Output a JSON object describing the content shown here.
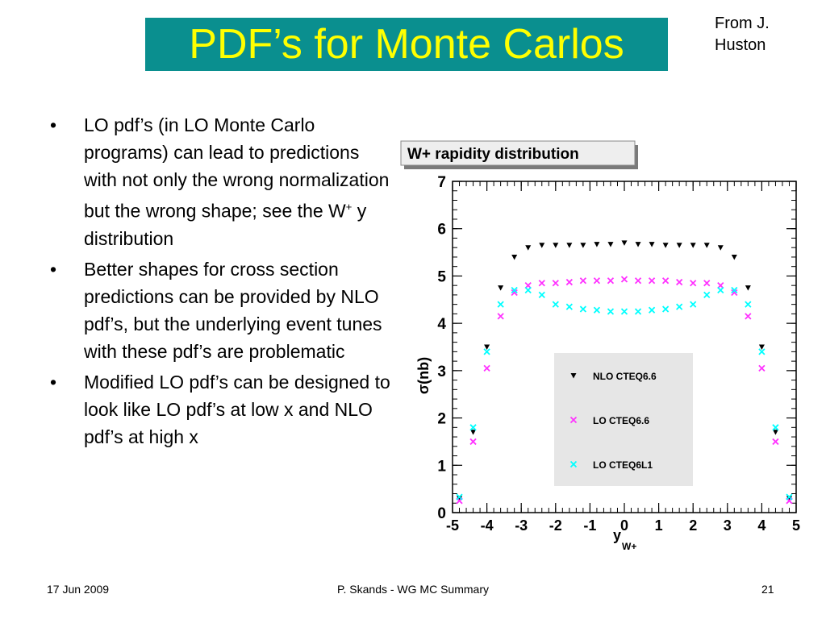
{
  "slide": {
    "title": "PDF’s for Monte Carlos",
    "credit_line1": "From J.",
    "credit_line2": "Huston",
    "bullets": [
      {
        "text_before": "LO pdf’s (in LO Monte Carlo programs) can lead to predictions with not only the wrong normalization but the wrong shape; see the W",
        "sup": "+",
        "text_after": " y distribution"
      },
      {
        "text_before": "Better shapes for cross section predictions can be provided by NLO pdf’s, but the underlying event tunes with these pdf’s are problematic",
        "sup": "",
        "text_after": ""
      },
      {
        "text_before": "Modified LO pdf’s can be designed to look like LO pdf’s at low x and NLO pdf’s at high x",
        "sup": "",
        "text_after": ""
      }
    ],
    "bullet_glyph": "•",
    "footer": {
      "date": "17 Jun 2009",
      "center": "P. Skands - WG MC Summary",
      "page": "21"
    }
  },
  "colors": {
    "title_bg": "#0a8f8f",
    "title_text": "#ffff00"
  },
  "chart_data": {
    "type": "scatter",
    "title": "W+ rapidity distribution",
    "xlabel": "y",
    "xlabel_sub": "W+",
    "ylabel": "σ(nb)",
    "xlim": [
      -5,
      5
    ],
    "ylim": [
      0,
      7
    ],
    "x_ticks": [
      -5,
      -4,
      -3,
      -2,
      -1,
      0,
      1,
      2,
      3,
      4,
      5
    ],
    "y_ticks": [
      0,
      1,
      2,
      3,
      4,
      5,
      6,
      7
    ],
    "legend_position": "right-bottom",
    "x": [
      -4.8,
      -4.4,
      -4.0,
      -3.6,
      -3.2,
      -2.8,
      -2.4,
      -2.0,
      -1.6,
      -1.2,
      -0.8,
      -0.4,
      0.0,
      0.4,
      0.8,
      1.2,
      1.6,
      2.0,
      2.4,
      2.8,
      3.2,
      3.6,
      4.0,
      4.4,
      4.8
    ],
    "series": [
      {
        "name": "NLO CTEQ6.6",
        "marker": "triangle-down",
        "color": "#000000",
        "values": [
          0.3,
          1.7,
          3.5,
          4.75,
          5.4,
          5.6,
          5.65,
          5.65,
          5.65,
          5.65,
          5.67,
          5.67,
          5.7,
          5.67,
          5.67,
          5.65,
          5.65,
          5.65,
          5.65,
          5.6,
          5.4,
          4.75,
          3.5,
          1.7,
          0.3
        ]
      },
      {
        "name": "LO CTEQ6.6",
        "marker": "x",
        "color": "#ff33ff",
        "values": [
          0.25,
          1.5,
          3.05,
          4.15,
          4.65,
          4.8,
          4.85,
          4.85,
          4.87,
          4.9,
          4.9,
          4.9,
          4.93,
          4.9,
          4.9,
          4.9,
          4.87,
          4.85,
          4.85,
          4.8,
          4.65,
          4.15,
          3.05,
          1.5,
          0.25
        ]
      },
      {
        "name": "LO CTEQ6L1",
        "marker": "x",
        "color": "#00ffff",
        "values": [
          0.33,
          1.8,
          3.4,
          4.4,
          4.7,
          4.7,
          4.6,
          4.4,
          4.35,
          4.3,
          4.28,
          4.25,
          4.25,
          4.25,
          4.28,
          4.3,
          4.35,
          4.4,
          4.6,
          4.7,
          4.7,
          4.4,
          3.4,
          1.8,
          0.33
        ]
      }
    ]
  }
}
